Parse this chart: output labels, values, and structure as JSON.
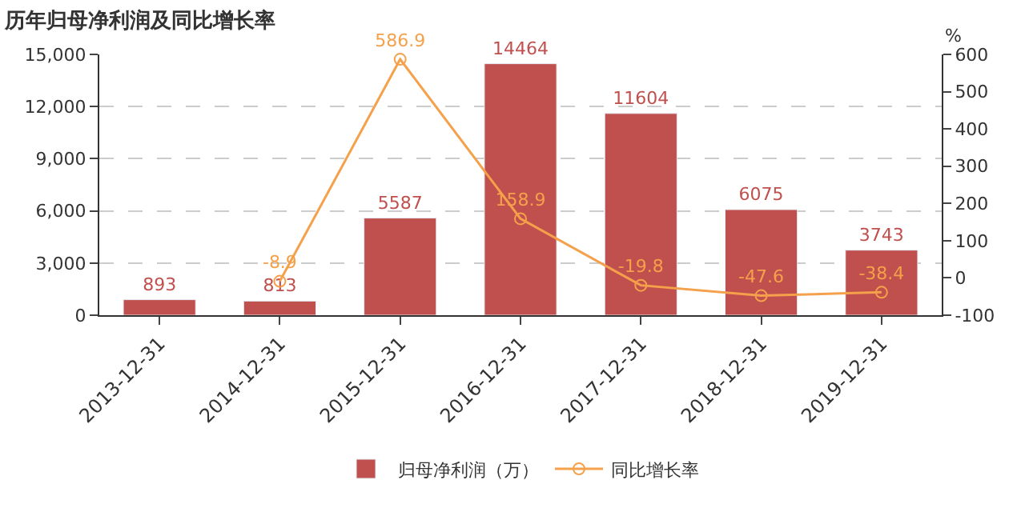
{
  "chart_data": {
    "type": "bar",
    "title": "历年归母净利润及同比增长率",
    "categories": [
      "2013-12-31",
      "2014-12-31",
      "2015-12-31",
      "2016-12-31",
      "2017-12-31",
      "2018-12-31",
      "2019-12-31"
    ],
    "series": [
      {
        "name": "归母净利润（万）",
        "color": "#c0504d",
        "values": [
          893,
          813,
          5587,
          14464,
          11604,
          6075,
          3743
        ]
      },
      {
        "name": "同比增长率",
        "type": "line",
        "axis": "y2",
        "color": "#f5a04a",
        "marker": "circle",
        "values": [
          null,
          -8.9,
          586.9,
          158.9,
          -19.8,
          -47.6,
          -38.4
        ]
      }
    ],
    "ylim": [
      0,
      15000
    ],
    "yticks": [
      0,
      {
        "value": 3000,
        "label": "3,000"
      },
      {
        "value": 6000,
        "label": "6,000"
      },
      {
        "value": 9000,
        "label": "9,000"
      },
      {
        "value": 12000,
        "label": "12,000"
      },
      {
        "value": 15000,
        "label": "15,000"
      }
    ],
    "y2lim": [
      -100,
      600
    ],
    "y2ticks": [
      -100,
      0,
      100,
      200,
      300,
      400,
      500,
      600
    ],
    "y2label": "%",
    "data_labels": true,
    "grid": "y",
    "legend": "bottom"
  }
}
